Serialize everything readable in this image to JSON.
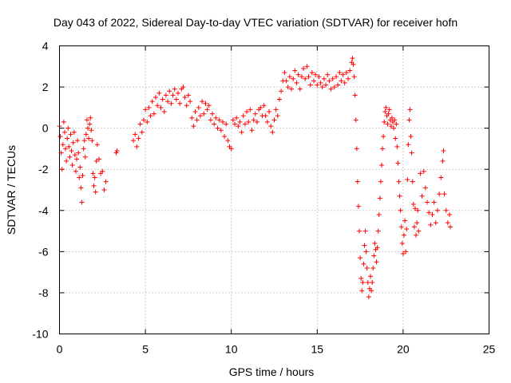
{
  "chart_data": {
    "type": "scatter",
    "title": "Day 043 of 2022, Sidereal Day-to-day VTEC variation (SDTVAR) for receiver hofn",
    "xlabel": "GPS time / hours",
    "ylabel": "SDTVAR / TECUs",
    "xlim": [
      0,
      25
    ],
    "ylim": [
      -10,
      4
    ],
    "xticks": [
      0,
      5,
      10,
      15,
      20,
      25
    ],
    "yticks": [
      -10,
      -8,
      -6,
      -4,
      -2,
      0,
      2,
      4
    ],
    "grid": true,
    "marker": "+",
    "series": [
      {
        "name": "SDTVAR",
        "color": "#ff0000",
        "points": [
          [
            0.0,
            0.1
          ],
          [
            0.05,
            -0.4
          ],
          [
            0.1,
            -1.2
          ],
          [
            0.15,
            -2.0
          ],
          [
            0.2,
            -0.8
          ],
          [
            0.25,
            0.3
          ],
          [
            0.3,
            -0.2
          ],
          [
            0.35,
            -1.0
          ],
          [
            0.4,
            -1.6
          ],
          [
            0.45,
            -0.5
          ],
          [
            0.5,
            0.0
          ],
          [
            0.55,
            -0.9
          ],
          [
            0.6,
            -1.4
          ],
          [
            0.65,
            -0.3
          ],
          [
            0.7,
            -1.1
          ],
          [
            0.75,
            -1.8
          ],
          [
            0.8,
            -0.7
          ],
          [
            0.85,
            -0.2
          ],
          [
            0.9,
            -1.3
          ],
          [
            0.95,
            -2.1
          ],
          [
            1.0,
            -1.5
          ],
          [
            1.05,
            -0.6
          ],
          [
            1.1,
            -1.2
          ],
          [
            1.15,
            -2.4
          ],
          [
            1.2,
            -1.9
          ],
          [
            1.25,
            -2.9
          ],
          [
            1.3,
            -3.6
          ],
          [
            1.35,
            -2.3
          ],
          [
            1.4,
            -1.0
          ],
          [
            1.45,
            -0.6
          ],
          [
            1.5,
            -1.4
          ],
          [
            1.55,
            -0.3
          ],
          [
            1.6,
            0.4
          ],
          [
            1.65,
            0.0
          ],
          [
            1.7,
            -0.5
          ],
          [
            1.75,
            0.2
          ],
          [
            1.8,
            0.5
          ],
          [
            1.85,
            -0.1
          ],
          [
            1.9,
            -0.6
          ],
          [
            1.95,
            -2.2
          ],
          [
            2.0,
            -2.8
          ],
          [
            2.05,
            -2.4
          ],
          [
            2.1,
            -3.1
          ],
          [
            2.15,
            -1.6
          ],
          [
            2.2,
            -0.8
          ],
          [
            2.3,
            -1.5
          ],
          [
            2.4,
            -2.2
          ],
          [
            2.5,
            -2.1
          ],
          [
            2.6,
            -3.0
          ],
          [
            2.7,
            -2.6
          ],
          [
            3.3,
            -1.2
          ],
          [
            3.35,
            -1.1
          ],
          [
            4.3,
            -0.6
          ],
          [
            4.4,
            -0.3
          ],
          [
            4.5,
            -0.9
          ],
          [
            4.6,
            -0.5
          ],
          [
            4.7,
            0.2
          ],
          [
            4.8,
            -0.2
          ],
          [
            4.9,
            0.4
          ],
          [
            5.0,
            0.9
          ],
          [
            5.1,
            0.3
          ],
          [
            5.2,
            1.0
          ],
          [
            5.3,
            0.6
          ],
          [
            5.4,
            1.3
          ],
          [
            5.5,
            0.7
          ],
          [
            5.6,
            1.5
          ],
          [
            5.7,
            1.1
          ],
          [
            5.8,
            1.7
          ],
          [
            5.9,
            1.0
          ],
          [
            6.0,
            1.4
          ],
          [
            6.1,
            0.8
          ],
          [
            6.2,
            1.6
          ],
          [
            6.3,
            1.3
          ],
          [
            6.4,
            1.8
          ],
          [
            6.5,
            1.2
          ],
          [
            6.6,
            1.6
          ],
          [
            6.7,
            1.9
          ],
          [
            6.8,
            1.4
          ],
          [
            6.9,
            1.7
          ],
          [
            7.0,
            1.2
          ],
          [
            7.1,
            1.9
          ],
          [
            7.2,
            2.0
          ],
          [
            7.3,
            1.5
          ],
          [
            7.4,
            1.1
          ],
          [
            7.5,
            1.6
          ],
          [
            7.6,
            1.3
          ],
          [
            7.7,
            0.5
          ],
          [
            7.8,
            0.1
          ],
          [
            7.9,
            0.8
          ],
          [
            8.0,
            0.4
          ],
          [
            8.1,
            1.0
          ],
          [
            8.2,
            0.6
          ],
          [
            8.3,
            1.3
          ],
          [
            8.4,
            0.7
          ],
          [
            8.5,
            1.2
          ],
          [
            8.6,
            0.9
          ],
          [
            8.7,
            1.1
          ],
          [
            8.8,
            0.4
          ],
          [
            8.9,
            0.7
          ],
          [
            9.0,
            0.2
          ],
          [
            9.1,
            0.5
          ],
          [
            9.2,
            0.0
          ],
          [
            9.3,
            0.4
          ],
          [
            9.4,
            -0.1
          ],
          [
            9.5,
            0.3
          ],
          [
            9.6,
            -0.4
          ],
          [
            9.7,
            0.2
          ],
          [
            9.8,
            -0.6
          ],
          [
            9.9,
            -0.9
          ],
          [
            10.0,
            -1.0
          ],
          [
            10.1,
            0.4
          ],
          [
            10.2,
            0.2
          ],
          [
            10.3,
            0.5
          ],
          [
            10.4,
            0.1
          ],
          [
            10.5,
            0.3
          ],
          [
            10.6,
            -0.2
          ],
          [
            10.7,
            0.6
          ],
          [
            10.8,
            0.2
          ],
          [
            10.9,
            0.8
          ],
          [
            11.0,
            0.3
          ],
          [
            11.1,
            0.9
          ],
          [
            11.2,
            -0.1
          ],
          [
            11.3,
            0.4
          ],
          [
            11.4,
            0.7
          ],
          [
            11.5,
            0.3
          ],
          [
            11.6,
            0.9
          ],
          [
            11.7,
            1.0
          ],
          [
            11.8,
            0.6
          ],
          [
            11.9,
            1.1
          ],
          [
            12.0,
            0.6
          ],
          [
            12.1,
            0.3
          ],
          [
            12.2,
            0.8
          ],
          [
            12.3,
            0.1
          ],
          [
            12.4,
            -0.2
          ],
          [
            12.5,
            0.4
          ],
          [
            12.6,
            0.9
          ],
          [
            12.7,
            0.6
          ],
          [
            12.8,
            1.4
          ],
          [
            12.9,
            1.8
          ],
          [
            13.0,
            2.3
          ],
          [
            13.1,
            2.7
          ],
          [
            13.2,
            2.3
          ],
          [
            13.3,
            2.0
          ],
          [
            13.4,
            2.5
          ],
          [
            13.5,
            1.9
          ],
          [
            13.6,
            2.4
          ],
          [
            13.7,
            2.8
          ],
          [
            13.8,
            2.2
          ],
          [
            13.9,
            2.6
          ],
          [
            14.0,
            1.9
          ],
          [
            14.1,
            2.5
          ],
          [
            14.2,
            2.9
          ],
          [
            14.3,
            2.4
          ],
          [
            14.4,
            3.0
          ],
          [
            14.5,
            2.5
          ],
          [
            14.6,
            2.1
          ],
          [
            14.7,
            2.7
          ],
          [
            14.8,
            2.3
          ],
          [
            14.9,
            2.6
          ],
          [
            15.0,
            2.1
          ],
          [
            15.1,
            2.5
          ],
          [
            15.2,
            2.2
          ],
          [
            15.3,
            2.0
          ],
          [
            15.4,
            2.4
          ],
          [
            15.5,
            2.1
          ],
          [
            15.6,
            2.6
          ],
          [
            15.7,
            2.3
          ],
          [
            15.8,
            1.9
          ],
          [
            15.9,
            2.4
          ],
          [
            16.0,
            2.0
          ],
          [
            16.1,
            2.5
          ],
          [
            16.2,
            2.1
          ],
          [
            16.3,
            2.7
          ],
          [
            16.4,
            2.3
          ],
          [
            16.5,
            2.6
          ],
          [
            16.6,
            2.2
          ],
          [
            16.7,
            2.7
          ],
          [
            16.8,
            2.4
          ],
          [
            16.9,
            2.8
          ],
          [
            17.0,
            3.2
          ],
          [
            17.05,
            3.4
          ],
          [
            17.1,
            3.1
          ],
          [
            17.15,
            2.5
          ],
          [
            17.2,
            1.6
          ],
          [
            17.25,
            0.4
          ],
          [
            17.3,
            -1.0
          ],
          [
            17.35,
            -2.6
          ],
          [
            17.4,
            -3.8
          ],
          [
            17.45,
            -5.0
          ],
          [
            17.5,
            -6.3
          ],
          [
            17.55,
            -7.3
          ],
          [
            17.6,
            -7.9
          ],
          [
            17.65,
            -7.5
          ],
          [
            17.7,
            -6.6
          ],
          [
            17.75,
            -5.7
          ],
          [
            17.8,
            -5.0
          ],
          [
            17.85,
            -6.0
          ],
          [
            17.9,
            -6.8
          ],
          [
            17.95,
            -7.5
          ],
          [
            18.0,
            -8.2
          ],
          [
            18.05,
            -7.8
          ],
          [
            18.1,
            -7.2
          ],
          [
            18.15,
            -7.9
          ],
          [
            18.2,
            -7.5
          ],
          [
            18.25,
            -6.8
          ],
          [
            18.3,
            -6.2
          ],
          [
            18.35,
            -5.6
          ],
          [
            18.4,
            -5.9
          ],
          [
            18.45,
            -6.5
          ],
          [
            18.5,
            -5.8
          ],
          [
            18.55,
            -5.0
          ],
          [
            18.6,
            -4.2
          ],
          [
            18.65,
            -3.4
          ],
          [
            18.7,
            -2.6
          ],
          [
            18.75,
            -1.8
          ],
          [
            18.8,
            -1.0
          ],
          [
            18.85,
            -0.4
          ],
          [
            18.9,
            0.3
          ],
          [
            18.95,
            0.8
          ],
          [
            19.0,
            1.0
          ],
          [
            19.05,
            0.6
          ],
          [
            19.1,
            0.2
          ],
          [
            19.15,
            0.7
          ],
          [
            19.2,
            0.9
          ],
          [
            19.25,
            0.4
          ],
          [
            19.3,
            0.1
          ],
          [
            19.35,
            0.5
          ],
          [
            19.4,
            0.3
          ],
          [
            19.45,
            0.0
          ],
          [
            19.5,
            0.4
          ],
          [
            19.55,
            -0.5
          ],
          [
            19.6,
            0.2
          ],
          [
            19.65,
            -0.9
          ],
          [
            19.7,
            -1.7
          ],
          [
            19.75,
            -2.6
          ],
          [
            19.8,
            -3.3
          ],
          [
            19.85,
            -4.0
          ],
          [
            19.9,
            -4.8
          ],
          [
            19.95,
            -5.6
          ],
          [
            20.0,
            -6.1
          ],
          [
            20.05,
            -5.2
          ],
          [
            20.1,
            -4.5
          ],
          [
            20.15,
            -6.0
          ],
          [
            20.2,
            -4.9
          ],
          [
            20.25,
            -2.5
          ],
          [
            20.3,
            -0.8
          ],
          [
            20.35,
            0.4
          ],
          [
            20.4,
            0.9
          ],
          [
            20.45,
            -0.4
          ],
          [
            20.5,
            -1.2
          ],
          [
            20.55,
            -2.6
          ],
          [
            20.6,
            -3.7
          ],
          [
            20.65,
            -4.8
          ],
          [
            20.7,
            -3.9
          ],
          [
            20.75,
            -5.2
          ],
          [
            20.8,
            -4.6
          ],
          [
            20.85,
            -4.0
          ],
          [
            20.9,
            -5.0
          ],
          [
            21.0,
            -2.2
          ],
          [
            21.1,
            -3.3
          ],
          [
            21.2,
            -2.1
          ],
          [
            21.3,
            -2.9
          ],
          [
            21.4,
            -3.6
          ],
          [
            21.5,
            -4.1
          ],
          [
            21.6,
            -4.7
          ],
          [
            21.7,
            -4.2
          ],
          [
            21.8,
            -3.6
          ],
          [
            21.9,
            -4.6
          ],
          [
            22.0,
            -4.0
          ],
          [
            22.1,
            -3.2
          ],
          [
            22.2,
            -2.4
          ],
          [
            22.3,
            -1.6
          ],
          [
            22.35,
            -1.1
          ],
          [
            22.4,
            -3.2
          ],
          [
            22.5,
            -4.0
          ],
          [
            22.6,
            -4.6
          ],
          [
            22.7,
            -4.2
          ],
          [
            22.75,
            -4.8
          ]
        ]
      }
    ]
  }
}
